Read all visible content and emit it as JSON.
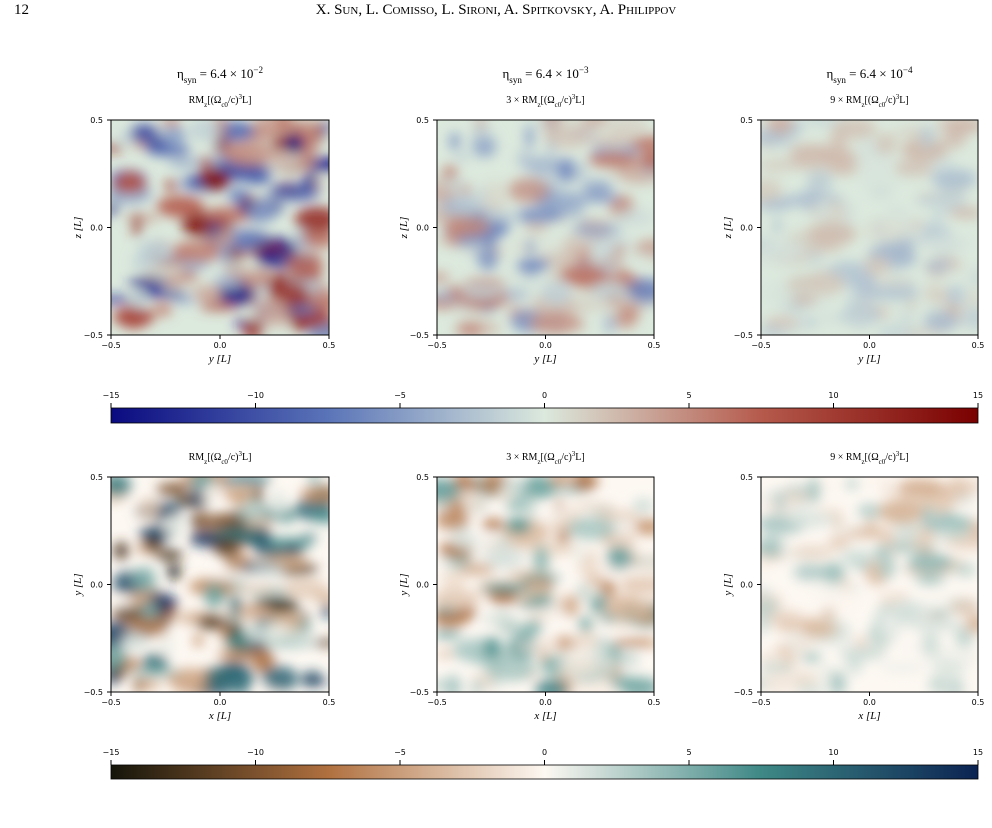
{
  "header": {
    "page_number": "12",
    "authors": "X. Sun, L. Comisso, L. Sironi, A. Spitkovsky, A. Philippov"
  },
  "figure": {
    "rows": [
      {
        "x_label": "y [L]",
        "y_label": "z [L]",
        "xlim": [
          -0.5,
          0.5
        ],
        "ylim": [
          -0.5,
          0.5
        ],
        "xticks": [
          {
            "value": -0.5,
            "label": "−0.5"
          },
          {
            "value": 0,
            "label": "0.0"
          },
          0.5
        ],
        "yticks": [
          {
            "value": -0.5,
            "label": "−0.5"
          },
          {
            "value": 0,
            "label": "0.0"
          },
          0.5
        ],
        "panels": [
          {
            "title": [
              {
                "text": "η"
              },
              {
                "text": "syn",
                "sub": true
              },
              {
                "text": " = 6.4 × 10"
              },
              {
                "text": "−2",
                "sup": true
              }
            ],
            "subtitle": [
              {
                "text": "RM"
              },
              {
                "text": "z",
                "sub": true
              },
              {
                "text": "[(Ω"
              },
              {
                "text": "c0",
                "sub": true
              },
              {
                "text": "/c)"
              },
              {
                "text": "3",
                "sup": true
              },
              {
                "text": "L]"
              }
            ]
          },
          {
            "title": [
              {
                "text": "η"
              },
              {
                "text": "syn",
                "sub": true
              },
              {
                "text": " = 6.4 × 10"
              },
              {
                "text": "−3",
                "sup": true
              }
            ],
            "subtitle": [
              {
                "text": "3 × RM"
              },
              {
                "text": "z",
                "sub": true
              },
              {
                "text": "[(Ω"
              },
              {
                "text": "c0",
                "sub": true
              },
              {
                "text": "/c)"
              },
              {
                "text": "3",
                "sup": true
              },
              {
                "text": "L]"
              }
            ]
          },
          {
            "title": [
              {
                "text": "η"
              },
              {
                "text": "syn",
                "sub": true
              },
              {
                "text": " = 6.4 × 10"
              },
              {
                "text": "−4",
                "sup": true
              }
            ],
            "subtitle": [
              {
                "text": "9 × RM"
              },
              {
                "text": "z",
                "sub": true
              },
              {
                "text": "[(Ω"
              },
              {
                "text": "c0",
                "sub": true
              },
              {
                "text": "/c)"
              },
              {
                "text": "3",
                "sup": true
              },
              {
                "text": "L]"
              }
            ]
          }
        ],
        "colorbar": {
          "clim": [
            -15,
            15
          ],
          "colors": [
            "#0a0a80",
            "#5a74b8",
            "#dce9dd",
            "#b55a4c",
            "#7a0000"
          ],
          "ticks": [
            {
              "value": -15,
              "label": "−15"
            },
            {
              "value": -10,
              "label": "−10"
            },
            {
              "value": -5,
              "label": "−5"
            },
            0,
            5,
            10,
            15
          ]
        }
      },
      {
        "x_label": "x [L]",
        "y_label": "y [L]",
        "xlim": [
          -0.5,
          0.5
        ],
        "ylim": [
          -0.5,
          0.5
        ],
        "xticks": [
          {
            "value": -0.5,
            "label": "−0.5"
          },
          {
            "value": 0,
            "label": "0.0"
          },
          0.5
        ],
        "yticks": [
          {
            "value": -0.5,
            "label": "−0.5"
          },
          {
            "value": 0,
            "label": "0.0"
          },
          0.5
        ],
        "panels": [
          {
            "subtitle": [
              {
                "text": "RM"
              },
              {
                "text": "z",
                "sub": true
              },
              {
                "text": "[(Ω"
              },
              {
                "text": "c0",
                "sub": true
              },
              {
                "text": "/c)"
              },
              {
                "text": "3",
                "sup": true
              },
              {
                "text": "L]"
              }
            ]
          },
          {
            "subtitle": [
              {
                "text": "3 × RM"
              },
              {
                "text": "z",
                "sub": true
              },
              {
                "text": "[(Ω"
              },
              {
                "text": "c0",
                "sub": true
              },
              {
                "text": "/c)"
              },
              {
                "text": "3",
                "sup": true
              },
              {
                "text": "L]"
              }
            ]
          },
          {
            "subtitle": [
              {
                "text": "9 × RM"
              },
              {
                "text": "z",
                "sub": true
              },
              {
                "text": "[(Ω"
              },
              {
                "text": "c0",
                "sub": true
              },
              {
                "text": "/c)"
              },
              {
                "text": "3",
                "sup": true
              },
              {
                "text": "L]"
              }
            ]
          }
        ],
        "colorbar": {
          "clim": [
            -15,
            15
          ],
          "colors": [
            "#15150a",
            "#b0703f",
            "#fdf8f2",
            "#3e8886",
            "#0b2352"
          ],
          "ticks": [
            {
              "value": -15,
              "label": "−15"
            },
            {
              "value": -10,
              "label": "−10"
            },
            {
              "value": -5,
              "label": "−5"
            },
            0,
            5,
            10,
            15
          ]
        }
      }
    ]
  }
}
